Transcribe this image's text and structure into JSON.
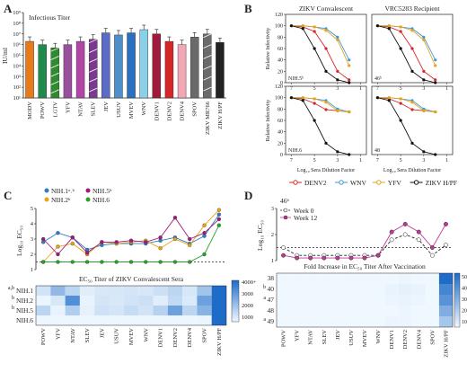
{
  "panels": {
    "A": {
      "letter": "A",
      "inner_title": "Infectious Titer",
      "ylabel": "IU/ml",
      "yticks": [
        "10⁹",
        "10⁸",
        "10⁷",
        "10⁶",
        "10⁵",
        "10⁴",
        "10³",
        "10²",
        "10¹"
      ]
    },
    "B": {
      "letter": "B",
      "title_left": "ZIKV Convalescent",
      "title_right": "VRC5283 Recipient",
      "ylabel": "Relative Infectivity",
      "xlabel": "Log₁₀ Sera Dilution Factor",
      "yticks": [
        "120",
        "100",
        "80",
        "60",
        "40",
        "20",
        "0"
      ],
      "xticks": [
        "7",
        "5",
        "3",
        "1"
      ],
      "subtags": [
        "NIH.5ᵇ",
        "46ᵇ",
        "NIH.6",
        "48"
      ],
      "legend": [
        {
          "name": "DENV2",
          "color": "#d62728"
        },
        {
          "name": "WNV",
          "color": "#3b9bd6"
        },
        {
          "name": "YFV",
          "color": "#e8a317"
        },
        {
          "name": "ZIKV H/PF",
          "color": "#111111"
        }
      ]
    },
    "C": {
      "letter": "C",
      "ylabel": "Log₁₀ EC₅₀",
      "yticks": [
        "5",
        "4",
        "3",
        "2",
        "1"
      ],
      "legend": [
        {
          "name": "NIH.1ᵃ˒ᵇ",
          "color": "#2e7fc1"
        },
        {
          "name": "NIH.2ᵇ",
          "color": "#e8a317"
        },
        {
          "name": "NIH.5ᵇ",
          "color": "#a01a7d"
        },
        {
          "name": "NIH.6",
          "color": "#2ca02c"
        }
      ],
      "heat_title": "EC₅₀ Titer of ZIKV Convalescent Sera",
      "rows": [
        "NIH.1",
        "NIH.2",
        "NIH.5",
        "NIH.6"
      ],
      "row_marks": [
        "a,b",
        "b",
        "b",
        ""
      ],
      "colorbar": [
        "4000+",
        "3000",
        "2000",
        "1000"
      ]
    },
    "D": {
      "letter": "D",
      "ylabel": "Log₁₀ EC₅₀",
      "tag": "46ᵇ",
      "yticks": [
        "3",
        "2",
        "1"
      ],
      "legend": [
        {
          "name": "Week 0",
          "color": "#ffffff"
        },
        {
          "name": "Week 12",
          "color": "#c0399a"
        }
      ],
      "heat_title": "Fold Increase in EC₅₀ Titer After Vaccination",
      "rows": [
        "38",
        "40",
        "47",
        "48",
        "49"
      ],
      "row_marks": [
        "",
        "b",
        "a",
        "",
        "a"
      ],
      "colorbar": [
        "50",
        "40",
        "30",
        "20",
        "10"
      ]
    }
  },
  "viruses_A": [
    "MODV",
    "POWV",
    "LGTV",
    "YFV",
    "NTAV",
    "SLEV",
    "JEV",
    "USUV",
    "MVEV",
    "WNV",
    "DENV1",
    "DENV2",
    "DENV4",
    "SPOV",
    "ZIKV MR766",
    "ZIKV H/PF"
  ],
  "viruses_CD": [
    "POWV",
    "YFV",
    "NTAV",
    "SLEV",
    "JEV",
    "USUV",
    "MVEV",
    "WNV",
    "DENV1",
    "DENV2",
    "DENV4",
    "SPOV",
    "ZIKV H/PF"
  ],
  "chart_data": [
    {
      "type": "bar",
      "panel": "A",
      "categories": [
        "MODV",
        "POWV",
        "LGTV",
        "YFV",
        "NTAV",
        "SLEV",
        "JEV",
        "USUV",
        "MVEV",
        "WNV",
        "DENV1",
        "DENV2",
        "DENV4",
        "SPOV",
        "ZIKV MR766",
        "ZIKV H/PF"
      ],
      "values": [
        6.3,
        6.0,
        5.7,
        6.0,
        6.3,
        6.5,
        7.1,
        6.9,
        7.1,
        7.4,
        7.0,
        6.3,
        6.0,
        6.7,
        7.0,
        6.2
      ],
      "colors": [
        "#e87a1c",
        "#1e8a4c",
        "#2e8b2e",
        "#9a4f9e",
        "#b146a6",
        "#7a3b8f",
        "#5b6cc5",
        "#4e8ec9",
        "#2a6fc0",
        "#8ad0e8",
        "#a01a3c",
        "#d62728",
        "#f2a6b6",
        "#6a6a6a",
        "#6a6a6a",
        "#222222"
      ],
      "ylabel": "IU/ml",
      "log_scale": true,
      "ylim": [
        1,
        9
      ]
    },
    {
      "type": "line",
      "panel": "B",
      "xlabel": "Log₁₀ Sera Dilution Factor",
      "ylabel": "Relative Infectivity",
      "series": [
        {
          "name": "DENV2",
          "color": "#d62728",
          "x": [
            7,
            6,
            5,
            4,
            3,
            2
          ],
          "y": [
            100,
            98,
            90,
            60,
            20,
            5
          ]
        },
        {
          "name": "WNV",
          "color": "#3b9bd6",
          "x": [
            7,
            6,
            5,
            4,
            3,
            2
          ],
          "y": [
            100,
            100,
            98,
            95,
            80,
            40
          ]
        },
        {
          "name": "YFV",
          "color": "#e8a317",
          "x": [
            7,
            6,
            5,
            4,
            3,
            2
          ],
          "y": [
            100,
            100,
            98,
            92,
            75,
            30
          ]
        },
        {
          "name": "ZIKV H/PF",
          "color": "#111111",
          "x": [
            7,
            6,
            5,
            4,
            3,
            2
          ],
          "y": [
            100,
            95,
            60,
            20,
            5,
            0
          ]
        }
      ]
    },
    {
      "type": "line",
      "panel": "C",
      "categories": [
        "POWV",
        "YFV",
        "NTAV",
        "SLEV",
        "JEV",
        "USUV",
        "MVEV",
        "WNV",
        "DENV1",
        "DENV2",
        "DENV4",
        "SPOV",
        "ZIKV H/PF"
      ],
      "series": [
        {
          "name": "NIH.1",
          "color": "#2e7fc1",
          "values": [
            2.8,
            3.4,
            3.1,
            2.3,
            2.6,
            2.7,
            2.7,
            2.7,
            2.9,
            3.1,
            2.7,
            3.2,
            4.6
          ]
        },
        {
          "name": "NIH.2",
          "color": "#e8a317",
          "values": [
            1.5,
            2.5,
            2.7,
            2.0,
            2.8,
            2.7,
            2.8,
            2.9,
            2.4,
            3.0,
            2.6,
            3.9,
            4.9
          ]
        },
        {
          "name": "NIH.5",
          "color": "#a01a7d",
          "values": [
            3.0,
            2.0,
            3.1,
            2.1,
            2.8,
            2.8,
            2.9,
            2.8,
            3.1,
            4.4,
            3.0,
            3.4,
            4.3
          ]
        },
        {
          "name": "NIH.6",
          "color": "#2ca02c",
          "values": [
            1.5,
            1.5,
            1.5,
            1.5,
            1.5,
            1.5,
            1.5,
            1.5,
            1.5,
            1.5,
            1.5,
            2.0,
            3.9
          ]
        }
      ],
      "ylabel": "Log₁₀ EC₅₀",
      "ylim": [
        1,
        5
      ]
    },
    {
      "type": "heatmap",
      "panel": "C",
      "title": "EC₅₀ Titer of ZIKV Convalescent Sera",
      "rows": [
        "NIH.1",
        "NIH.2",
        "NIH.5",
        "NIH.6"
      ],
      "columns": [
        "POWV",
        "YFV",
        "NTAV",
        "SLEV",
        "JEV",
        "USUV",
        "MVEV",
        "WNV",
        "DENV1",
        "DENV2",
        "DENV4",
        "SPOV",
        "ZIKV H/PF"
      ],
      "values": [
        [
          600,
          1800,
          1000,
          300,
          450,
          500,
          550,
          500,
          700,
          1000,
          500,
          1500,
          4000
        ],
        [
          100,
          500,
          3000,
          150,
          550,
          450,
          600,
          700,
          300,
          900,
          400,
          2500,
          4000
        ],
        [
          1000,
          150,
          1200,
          200,
          650,
          550,
          800,
          600,
          1100,
          2500,
          1000,
          2000,
          4000
        ],
        [
          50,
          50,
          50,
          50,
          50,
          50,
          50,
          50,
          50,
          50,
          50,
          100,
          4000
        ]
      ]
    },
    {
      "type": "line",
      "panel": "D",
      "categories": [
        "POWV",
        "YFV",
        "NTAV",
        "SLEV",
        "JEV",
        "USUV",
        "MVEV",
        "WNV",
        "DENV1",
        "DENV2",
        "DENV4",
        "SPOV",
        "ZIKV H/PF"
      ],
      "series": [
        {
          "name": "Week 0",
          "values": [
            1.5,
            1.2,
            1.2,
            1.2,
            1.2,
            1.2,
            1.2,
            1.2,
            1.8,
            2.0,
            1.8,
            1.2,
            1.6
          ]
        },
        {
          "name": "Week 12",
          "values": [
            1.2,
            1.1,
            1.1,
            1.1,
            1.1,
            1.1,
            1.1,
            1.2,
            2.1,
            2.4,
            2.1,
            1.5,
            2.4
          ]
        }
      ],
      "ylabel": "Log₁₀ EC₅₀",
      "ylim": [
        1,
        3
      ]
    },
    {
      "type": "heatmap",
      "panel": "D",
      "title": "Fold Increase in EC₅₀ Titer After Vaccination",
      "rows": [
        "38",
        "40",
        "47",
        "48",
        "49"
      ],
      "columns": [
        "POWV",
        "YFV",
        "NTAV",
        "SLEV",
        "JEV",
        "USUV",
        "MVEV",
        "WNV",
        "DENV1",
        "DENV2",
        "DENV4",
        "SPOV",
        "ZIKV H/PF"
      ],
      "values": [
        [
          1,
          1,
          1,
          1,
          1,
          1,
          1,
          1,
          1,
          2,
          1,
          1,
          55
        ],
        [
          1,
          1,
          1,
          1,
          1,
          1,
          1,
          1,
          3,
          4,
          3,
          1,
          45
        ],
        [
          1,
          1,
          1,
          1,
          1,
          1,
          1,
          1,
          2,
          3,
          2,
          1,
          40
        ],
        [
          1,
          1,
          1,
          1,
          1,
          1,
          1,
          1,
          1,
          2,
          1,
          1,
          30
        ],
        [
          1,
          1,
          1,
          1,
          1,
          1,
          1,
          1,
          2,
          2,
          1,
          1,
          20
        ]
      ]
    }
  ]
}
